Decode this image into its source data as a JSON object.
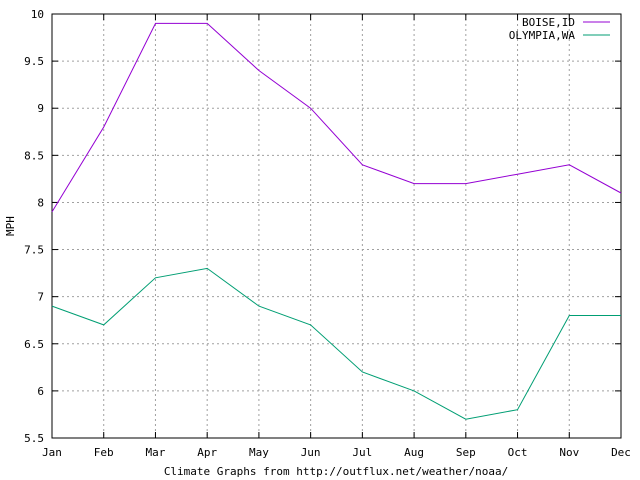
{
  "chart_data": {
    "type": "line",
    "title": "",
    "xlabel": "Climate Graphs from http://outflux.net/weather/noaa/",
    "ylabel": "MPH",
    "categories": [
      "Jan",
      "Feb",
      "Mar",
      "Apr",
      "May",
      "Jun",
      "Jul",
      "Aug",
      "Sep",
      "Oct",
      "Nov",
      "Dec"
    ],
    "ylim": [
      5.5,
      10
    ],
    "yticks": [
      "5.5",
      "6",
      "6.5",
      "7",
      "7.5",
      "8",
      "8.5",
      "9",
      "9.5",
      "10"
    ],
    "grid": true,
    "legend_position": "top-right",
    "series": [
      {
        "name": "BOISE,ID",
        "color": "#9400d3",
        "values": [
          7.9,
          8.8,
          9.9,
          9.9,
          9.4,
          9.0,
          8.4,
          8.2,
          8.2,
          8.3,
          8.4,
          8.1
        ]
      },
      {
        "name": "OLYMPIA,WA",
        "color": "#009e73",
        "values": [
          6.9,
          6.7,
          7.2,
          7.3,
          6.9,
          6.7,
          6.2,
          6.0,
          5.7,
          5.8,
          6.8,
          6.8
        ]
      }
    ]
  }
}
